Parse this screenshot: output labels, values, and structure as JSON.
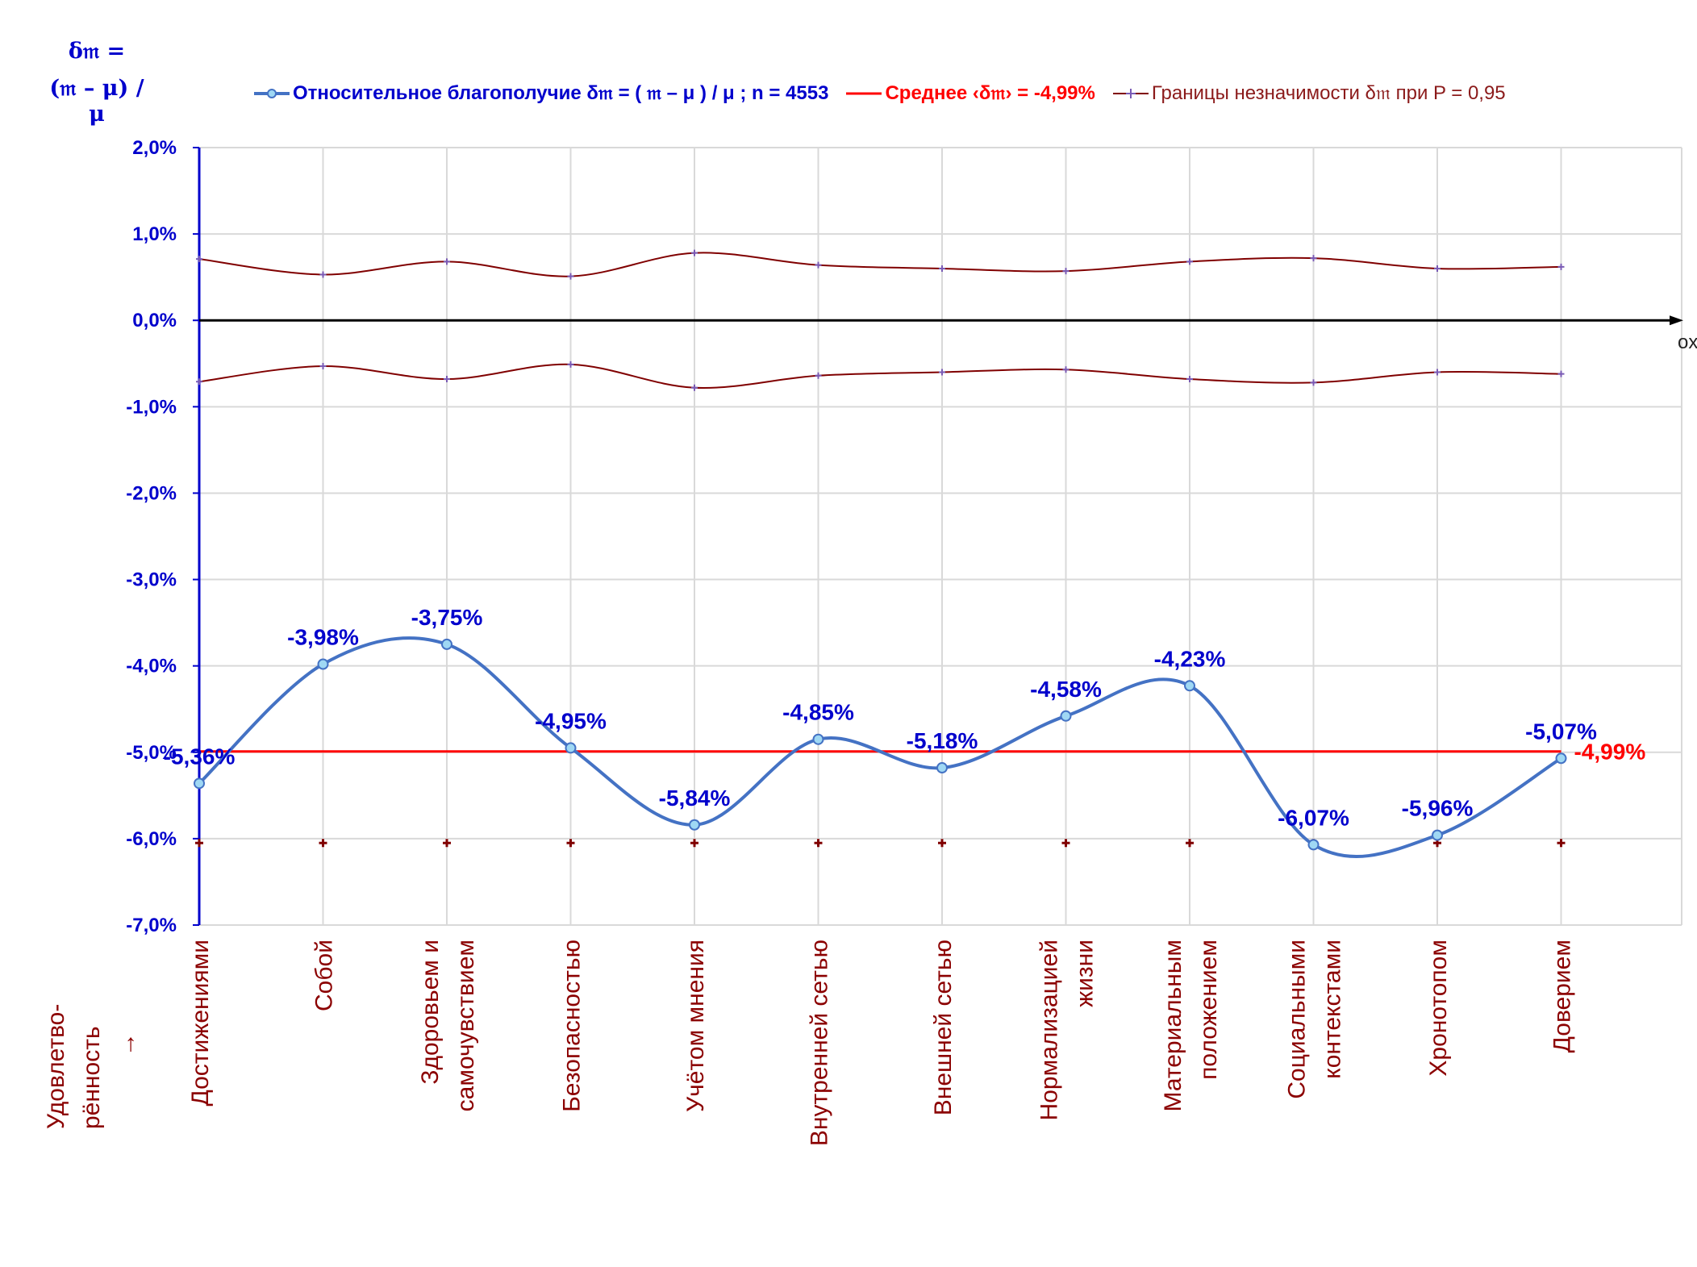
{
  "y_axis_title_line1": "δ𝔪 =",
  "y_axis_title_line2": "(𝔪 – μ) / μ",
  "x_axis_end_label": "ox",
  "side_caption": [
    "Удовлетво-",
    "рённость",
    "→"
  ],
  "legend": {
    "series": "Относительное благополучие δ𝔪 = ( 𝔪 – μ ) / μ ; n = 4553",
    "mean": "Среднее ‹δ𝔪› = -4,99%",
    "bounds": "Границы незначимости δ𝔪 при P = 0,95"
  },
  "colors": {
    "series": "#4472c4",
    "series_marker_fill": "#9fd8f4",
    "mean": "#ff0000",
    "bounds": "#800000",
    "axis": "#0000cc",
    "labels": "#0000cc",
    "categories": "#8b0000",
    "grid": "#d9d9d9"
  },
  "chart_data": {
    "type": "line",
    "categories": [
      [
        "Достижениями"
      ],
      [
        "Собой"
      ],
      [
        "Здоровьем и",
        "самочувствием"
      ],
      [
        "Безопасностью"
      ],
      [
        "Учётом мнения"
      ],
      [
        "Внутренней сетью"
      ],
      [
        "Внешней сетью"
      ],
      [
        "Нормализацией",
        "жизни"
      ],
      [
        "Материальным",
        "положением"
      ],
      [
        "Социальными",
        "контекстами"
      ],
      [
        "Хронотопом"
      ],
      [
        "Доверием"
      ]
    ],
    "series": [
      {
        "name": "Относительное благополучие δ𝔪 = ( 𝔪 – μ ) / μ ; n = 4553",
        "values": [
          -5.36,
          -3.98,
          -3.75,
          -4.95,
          -5.84,
          -4.85,
          -5.18,
          -4.58,
          -4.23,
          -6.07,
          -5.96,
          -5.07
        ],
        "labels": [
          "-5,36%",
          "-3,98%",
          "-3,75%",
          "-4,95%",
          "-5,84%",
          "-4,85%",
          "-5,18%",
          "-4,58%",
          "-4,23%",
          "-6,07%",
          "-5,96%",
          "-5,07%"
        ]
      },
      {
        "name": "Границы незначимости δ𝔪 при P = 0,95",
        "upper": [
          0.71,
          0.53,
          0.68,
          0.51,
          0.78,
          0.64,
          0.6,
          0.57,
          0.68,
          0.72,
          0.6,
          0.62
        ],
        "lower": [
          -0.71,
          -0.53,
          -0.68,
          -0.51,
          -0.78,
          -0.64,
          -0.6,
          -0.57,
          -0.68,
          -0.72,
          -0.6,
          -0.62
        ]
      }
    ],
    "mean": {
      "value": -4.99,
      "label": "-4,99%"
    },
    "bottom_markers": -6.05,
    "ylim": [
      -7,
      2
    ],
    "yticks": [
      2,
      1,
      0,
      -1,
      -2,
      -3,
      -4,
      -5,
      -6,
      -7
    ],
    "ytick_labels": [
      "2,0%",
      "1,0%",
      "0,0%",
      "-1,0%",
      "-2,0%",
      "-3,0%",
      "-4,0%",
      "-5,0%",
      "-6,0%",
      "-7,0%"
    ],
    "grid": true,
    "legend_position": "top"
  }
}
